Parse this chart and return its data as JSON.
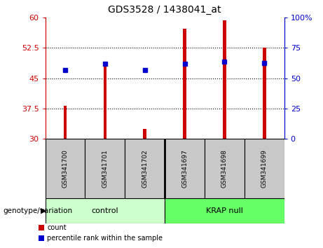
{
  "title": "GDS3528 / 1438041_at",
  "categories": [
    "GSM341700",
    "GSM341701",
    "GSM341702",
    "GSM341697",
    "GSM341698",
    "GSM341699"
  ],
  "red_values": [
    38.2,
    48.0,
    32.5,
    57.2,
    59.2,
    52.5
  ],
  "blue_values": [
    47.0,
    48.5,
    47.0,
    48.5,
    49.0,
    48.8
  ],
  "y_min": 30,
  "y_max": 60,
  "y_ticks": [
    30,
    37.5,
    45,
    52.5,
    60
  ],
  "y_right_ticks": [
    0,
    25,
    50,
    75,
    100
  ],
  "y_right_labels": [
    "0",
    "25",
    "50",
    "75",
    "100%"
  ],
  "red_color": "#cc0000",
  "blue_color": "#0000cc",
  "bar_width": 0.08,
  "group1_label": "control",
  "group2_label": "KRAP null",
  "group1_color": "#ccffcc",
  "group2_color": "#66ff66",
  "sample_bg_color": "#c8c8c8",
  "legend_count_label": "count",
  "legend_pct_label": "percentile rank within the sample",
  "xlabel": "genotype/variation",
  "marker_size": 4
}
